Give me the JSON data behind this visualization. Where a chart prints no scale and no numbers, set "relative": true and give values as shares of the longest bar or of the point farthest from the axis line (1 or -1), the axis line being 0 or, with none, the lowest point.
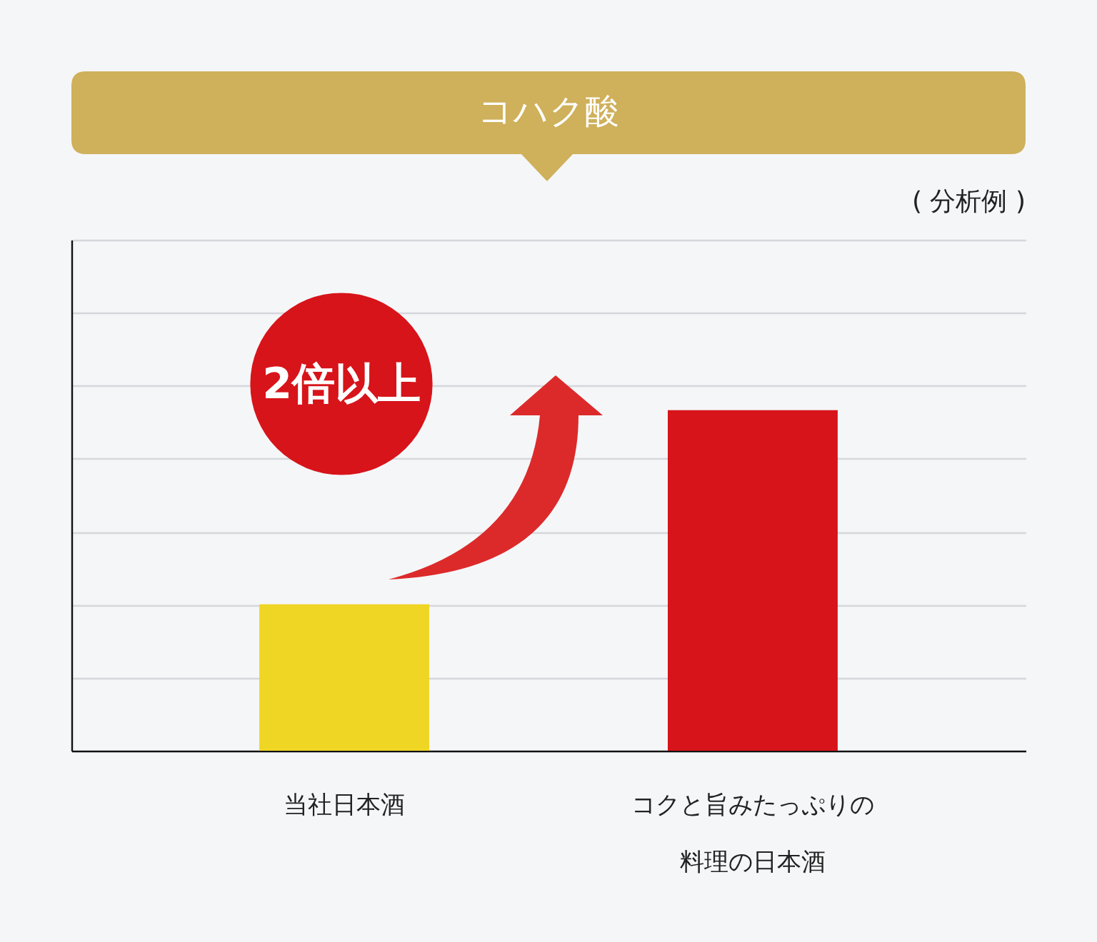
{
  "chart_data": {
    "type": "bar",
    "title": "コハク酸",
    "categories": [
      "当社日本酒",
      "コクと旨みたっぷりの料理の日本酒"
    ],
    "values": [
      0.43,
      1
    ],
    "colors": [
      "#f0d624",
      "#d7141a"
    ],
    "relative": true,
    "grid": "y",
    "annotations": [
      "( 分析例 )",
      "2倍以上"
    ]
  }
}
